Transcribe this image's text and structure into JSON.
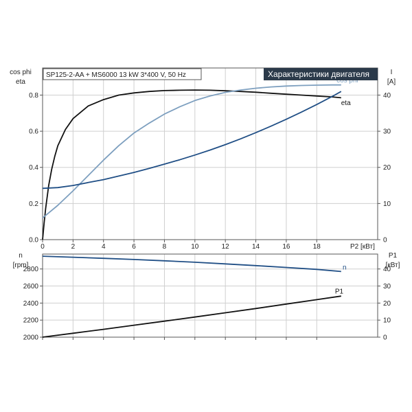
{
  "chart_data": [
    {
      "type": "line",
      "header": "SP125-2-AA + MS6000   13 kW   3*400 V, 50 Hz",
      "title": "Характеристики двигателя",
      "ylabel_left": [
        "cos phi",
        "eta"
      ],
      "ylabel_right": [
        "I",
        "[A]"
      ],
      "xlabel": "P2 [кВт]",
      "xlim": [
        0,
        22
      ],
      "ylim_left": [
        0,
        0.95
      ],
      "ylim_right": [
        0,
        47.5
      ],
      "xticks": [
        0,
        2,
        4,
        6,
        8,
        10,
        12,
        14,
        16,
        18
      ],
      "yticks_left": [
        0.0,
        0.2,
        0.4,
        0.6,
        0.8
      ],
      "yticks_right": [
        0,
        10,
        20,
        30,
        40
      ],
      "grid": true,
      "series": [
        {
          "name": "eta",
          "axis": "left",
          "color": "#111111",
          "x": [
            0,
            0.1,
            0.2,
            0.4,
            0.6,
            0.8,
            1.0,
            1.5,
            2.0,
            3.0,
            4.0,
            5.0,
            6.0,
            7.0,
            8.0,
            9.0,
            10.0,
            11.0,
            12.0,
            13.0,
            14.0,
            15.0,
            16.0,
            17.0,
            18.0,
            19.0,
            19.6
          ],
          "y": [
            0.0,
            0.09,
            0.17,
            0.3,
            0.39,
            0.46,
            0.52,
            0.61,
            0.67,
            0.74,
            0.775,
            0.8,
            0.812,
            0.82,
            0.825,
            0.827,
            0.828,
            0.827,
            0.824,
            0.82,
            0.816,
            0.81,
            0.805,
            0.8,
            0.795,
            0.79,
            0.785
          ]
        },
        {
          "name": "cos phi",
          "axis": "left",
          "color": "#7d9fbf",
          "x": [
            0,
            1,
            2,
            3,
            4,
            5,
            6,
            7,
            8,
            9,
            10,
            11,
            12,
            13,
            14,
            15,
            16,
            17,
            18,
            19,
            19.6
          ],
          "y": [
            0.12,
            0.19,
            0.27,
            0.355,
            0.44,
            0.52,
            0.59,
            0.645,
            0.695,
            0.735,
            0.77,
            0.795,
            0.815,
            0.828,
            0.838,
            0.845,
            0.85,
            0.853,
            0.855,
            0.856,
            0.856
          ]
        },
        {
          "name": "I",
          "axis": "right",
          "color": "#1f4e85",
          "x": [
            0,
            1,
            2,
            3,
            4,
            5,
            6,
            7,
            8,
            9,
            10,
            11,
            12,
            13,
            14,
            15,
            16,
            17,
            18,
            19,
            19.6
          ],
          "y": [
            14.2,
            14.4,
            15.0,
            15.8,
            16.6,
            17.6,
            18.6,
            19.7,
            20.9,
            22.1,
            23.4,
            24.8,
            26.3,
            27.9,
            29.6,
            31.4,
            33.3,
            35.3,
            37.4,
            39.6,
            41.0
          ]
        }
      ],
      "curve_labels": [
        {
          "text": "cos phi",
          "color": "#7d9fbf",
          "x": 19.3,
          "y": 0.87
        },
        {
          "text": "eta",
          "color": "#111111",
          "x": 19.6,
          "y": 0.745
        }
      ]
    },
    {
      "type": "line",
      "ylabel_left": [
        "n",
        "[rpm]"
      ],
      "ylabel_right": [
        "P1",
        "[кВт]"
      ],
      "xlim": [
        0,
        22
      ],
      "ylim_left": [
        2000,
        2975
      ],
      "ylim_right": [
        0,
        48.75
      ],
      "yticks_left": [
        2000,
        2200,
        2400,
        2600,
        2800
      ],
      "yticks_right": [
        0,
        10,
        20,
        30,
        40
      ],
      "grid": true,
      "series": [
        {
          "name": "n",
          "axis": "left",
          "color": "#1f4e85",
          "x": [
            0,
            2,
            4,
            6,
            8,
            10,
            12,
            14,
            16,
            18,
            19.6
          ],
          "y": [
            2950,
            2938,
            2925,
            2911,
            2896,
            2879,
            2860,
            2840,
            2818,
            2795,
            2770
          ]
        },
        {
          "name": "P1",
          "axis": "right",
          "color": "#111111",
          "x": [
            0,
            2,
            4,
            6,
            8,
            10,
            12,
            14,
            16,
            18,
            19.6
          ],
          "y": [
            0,
            2.3,
            4.6,
            7.0,
            9.4,
            11.8,
            14.3,
            16.8,
            19.4,
            22.0,
            24.1
          ]
        }
      ],
      "curve_labels": [
        {
          "text": "n",
          "color": "#1f4e85",
          "x": 19.7,
          "y": 2795
        },
        {
          "text": "P1",
          "color": "#111111",
          "x": 19.2,
          "y": 2510
        }
      ]
    }
  ]
}
